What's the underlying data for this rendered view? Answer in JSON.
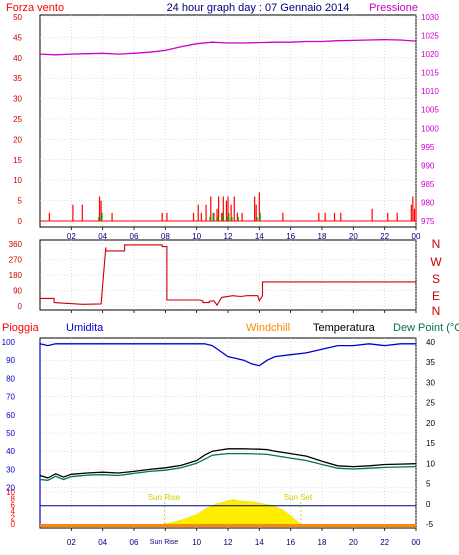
{
  "title": "24 hour graph day : 07 Gennaio 2014",
  "colors": {
    "red": "#ff0000",
    "darkred": "#cc0000",
    "magenta": "#cc00cc",
    "blue": "#0000cc",
    "navy": "#000080",
    "green": "#007744",
    "black": "#000000",
    "orange": "#ff8800",
    "yellow": "#ffee00",
    "sun": "#cccc00",
    "grid": "#c8c8c8"
  },
  "time_ticks": [
    "02",
    "04",
    "06",
    "08",
    "10",
    "12",
    "14",
    "16",
    "18",
    "20",
    "22",
    "00"
  ],
  "chart_data": [
    {
      "type": "line",
      "name": "wind-pressure",
      "left_label": "Forza vento",
      "right_label": "Pressione",
      "left_ticks": [
        "0",
        "5",
        "10",
        "15",
        "20",
        "25",
        "30",
        "35",
        "40",
        "45",
        "50"
      ],
      "right_ticks": [
        "975",
        "980",
        "985",
        "990",
        "995",
        "1000",
        "1005",
        "1010",
        "1015",
        "1020",
        "1025",
        "1030"
      ],
      "ylim_left": [
        0,
        50
      ],
      "ylim_right": [
        975,
        1030
      ],
      "pressure": {
        "x": [
          0,
          1,
          2,
          3,
          4,
          5,
          6,
          7,
          8,
          9,
          10,
          11,
          12,
          13,
          14,
          15,
          16,
          17,
          18,
          19,
          20,
          21,
          22,
          23,
          24
        ],
        "values": [
          1020.0,
          1019.8,
          1020.0,
          1020.1,
          1020.2,
          1020.0,
          1020.2,
          1020.5,
          1021.0,
          1022.0,
          1022.8,
          1023.2,
          1023.0,
          1023.0,
          1023.1,
          1023.2,
          1023.2,
          1023.4,
          1023.4,
          1023.6,
          1023.7,
          1023.8,
          1023.9,
          1023.8,
          1023.5
        ]
      },
      "wind_gust": {
        "x": [
          0.6,
          2.1,
          2.7,
          3.8,
          3.9,
          4.6,
          7.8,
          8.1,
          9.8,
          10.1,
          10.3,
          10.6,
          10.9,
          11.1,
          11.3,
          11.4,
          11.6,
          11.7,
          11.9,
          12.0,
          12.2,
          12.4,
          12.6,
          12.9,
          13.7,
          13.8,
          14.0,
          15.5,
          17.8,
          18.2,
          18.8,
          19.2,
          21.2,
          22.2,
          22.8,
          23.7,
          23.8,
          23.9,
          24.0
        ],
        "values": [
          2,
          4,
          4,
          6,
          5,
          2,
          2,
          2,
          2,
          4,
          2,
          4,
          6,
          2,
          3,
          6,
          2,
          6,
          5,
          6,
          4,
          6,
          2,
          2,
          6,
          4,
          7,
          2,
          2,
          2,
          2,
          2,
          3,
          2,
          2,
          4,
          6,
          3,
          5
        ]
      },
      "wind_avg": {
        "x": [
          3.7,
          3.9,
          10.8,
          11.0,
          11.3,
          11.6,
          11.9,
          12.0,
          12.2,
          12.6,
          13.8,
          14.0
        ],
        "values": [
          1,
          2,
          1,
          2,
          1,
          2,
          1,
          2,
          1,
          1,
          1,
          2
        ]
      }
    },
    {
      "type": "line",
      "name": "wind-direction",
      "right_labels": [
        "N",
        "W",
        "S",
        "E",
        "N"
      ],
      "left_ticks": [
        "0",
        "90",
        "180",
        "270",
        "360"
      ],
      "ylim": [
        0,
        360
      ],
      "x": [
        0,
        0.9,
        0.9,
        2.7,
        3.9,
        4.2,
        4.2,
        5.4,
        5.4,
        7.8,
        7.8,
        8.1,
        8.1,
        10.2,
        10.4,
        10.4,
        10.8,
        10.8,
        11.1,
        11.3,
        11.6,
        12.3,
        12.8,
        13.2,
        13.9,
        14.0,
        14.2,
        14.2,
        24
      ],
      "values": [
        44,
        44,
        20,
        10,
        12,
        340,
        320,
        320,
        355,
        355,
        345,
        345,
        35,
        35,
        30,
        20,
        20,
        28,
        30,
        5,
        50,
        60,
        55,
        60,
        60,
        30,
        60,
        140,
        140
      ]
    },
    {
      "type": "line",
      "name": "rain-humidity-temperature",
      "legend": [
        "Pioggia",
        "Umidita",
        "Windchill",
        "Temperatura",
        "Dew Point (°C"
      ],
      "left_ticks": [
        "0",
        "2",
        "4",
        "6",
        "8",
        "10",
        "20",
        "30",
        "40",
        "50",
        "60",
        "70",
        "80",
        "90",
        "100"
      ],
      "right_ticks": [
        "-5",
        "0",
        "5",
        "10",
        "15",
        "20",
        "25",
        "30",
        "35",
        "40"
      ],
      "ylim_right": [
        -5,
        40
      ],
      "annotations": [
        "Sun Rise",
        "Sun Set"
      ],
      "sunrise_time": 7.95,
      "sunset_time": 16.65,
      "humidity": {
        "x": [
          0,
          0.5,
          1,
          2,
          3,
          4,
          5,
          6,
          7,
          8,
          9,
          10,
          10.5,
          11,
          11.5,
          12,
          12.5,
          13,
          13.5,
          14,
          14.5,
          15,
          16,
          17,
          18,
          19,
          20,
          21,
          22,
          23,
          24
        ],
        "values": [
          99,
          98,
          99,
          99,
          99,
          99,
          99,
          99,
          99,
          99,
          99,
          99,
          99,
          98,
          95,
          92,
          91,
          90,
          88,
          87,
          90,
          92,
          93,
          94,
          96,
          98,
          98,
          99,
          98,
          99,
          99
        ]
      },
      "temperature": {
        "x": [
          0,
          0.5,
          1,
          1.5,
          2,
          3,
          4,
          5,
          6,
          7,
          8,
          9,
          10,
          10.5,
          11,
          11.5,
          12,
          13,
          14,
          14.5,
          15,
          16,
          17,
          18,
          19,
          20,
          21,
          22,
          23,
          24
        ],
        "values": [
          7.0,
          6.4,
          7.4,
          6.6,
          7.3,
          7.6,
          7.8,
          7.6,
          8.0,
          8.5,
          8.9,
          9.5,
          10.7,
          12.0,
          13.0,
          13.3,
          13.6,
          13.6,
          13.5,
          13.4,
          13.0,
          12.4,
          11.8,
          10.5,
          9.4,
          9.2,
          9.4,
          9.7,
          9.8,
          9.9
        ]
      },
      "dewpoint": {
        "x": [
          0,
          0.5,
          1,
          1.5,
          2,
          3,
          4,
          5,
          6,
          7,
          8,
          9,
          10,
          10.5,
          11,
          11.5,
          12,
          13,
          14,
          14.5,
          15,
          16,
          17,
          18,
          19,
          20,
          21,
          22,
          23,
          24
        ],
        "values": [
          6.0,
          5.8,
          6.8,
          6.0,
          6.7,
          7.1,
          7.2,
          7.0,
          7.5,
          8.0,
          8.3,
          8.9,
          10.0,
          11.0,
          12.0,
          12.2,
          12.4,
          12.4,
          12.3,
          12.2,
          11.9,
          11.3,
          10.7,
          9.7,
          8.8,
          8.6,
          8.8,
          9.0,
          9.1,
          9.2
        ]
      },
      "solar": {
        "x": [
          7.9,
          8.5,
          9.2,
          10.0,
          10.6,
          11.2,
          11.8,
          12.3,
          12.6,
          13.0,
          13.6,
          14.2,
          14.8,
          15.4,
          16.0,
          16.6
        ],
        "values": [
          0,
          0.3,
          0.8,
          1.6,
          2.6,
          3.3,
          3.7,
          4.1,
          3.9,
          3.8,
          3.7,
          3.4,
          3.1,
          2.5,
          1.4,
          0
        ]
      },
      "rain_total": 0
    }
  ]
}
